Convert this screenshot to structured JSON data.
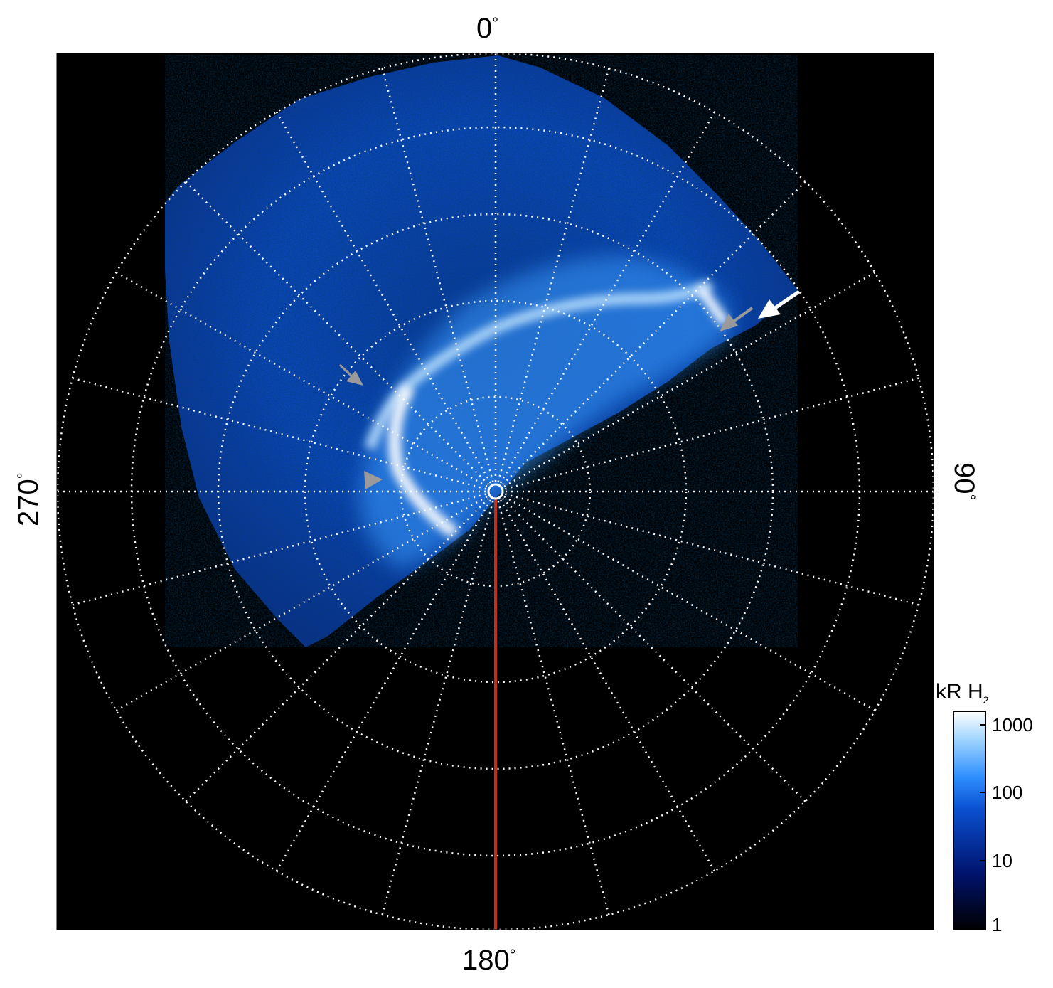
{
  "polar_labels": {
    "top": "0",
    "right": "90",
    "bottom": "180",
    "left": "270",
    "degree_symbol": "°"
  },
  "colorbar": {
    "title_main": "kR H",
    "title_sub": "2",
    "ticks": [
      "1000",
      "100",
      "10",
      "1"
    ],
    "scale": "log",
    "range": [
      1,
      1000
    ],
    "colors": [
      "#000000",
      "#00126b",
      "#0a4fd0",
      "#2f8fff",
      "#a6d8ff",
      "#ffffff"
    ]
  },
  "colors": {
    "background": "#000000",
    "grid": "#ffffff",
    "meridian_line": "#c2301a",
    "auroral_oval": "#ffffff",
    "marker_gray": "#9a9a9a",
    "marker_white": "#ffffff"
  }
}
